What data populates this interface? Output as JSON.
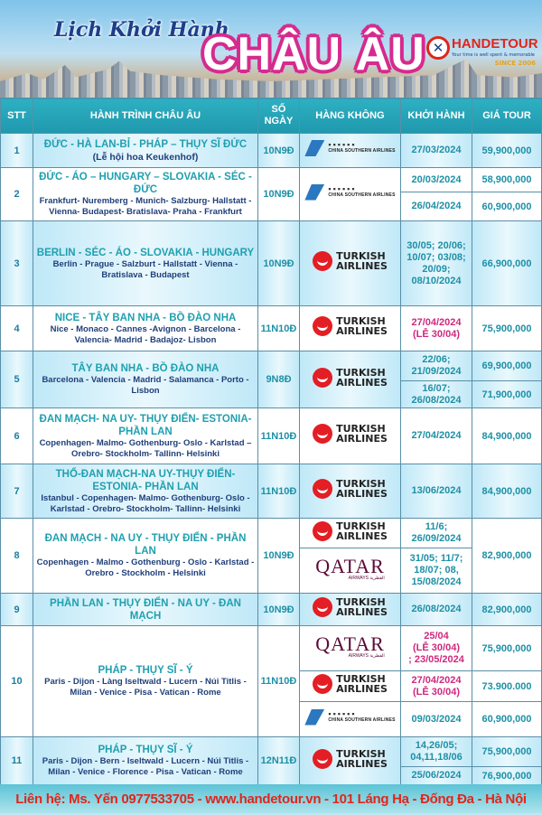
{
  "header": {
    "script_title": "Lịch Khởi Hành",
    "main_title": "CHÂU ÂU",
    "logo": {
      "name": "HANDETOUR",
      "tagline": "Your time is well spent & memorable",
      "since": "SINCE 2006"
    }
  },
  "airlines": {
    "china_southern": {
      "cn": "中国南方航空",
      "en": "CHINA SOUTHERN AIRLINES"
    },
    "turkish": {
      "l1": "TURKISH",
      "l2": "AIRLINES"
    },
    "qatar": {
      "l1": "QATAR",
      "l2": "AIRWAYS القطرية"
    }
  },
  "columns": {
    "stt": "STT",
    "route": "HÀNH TRÌNH CHÂU ÂU",
    "days_1": "SỐ",
    "days_2": "NGÀY",
    "airline": "HÀNG KHÔNG",
    "depart": "KHỞI HÀNH",
    "price": "GIÁ TOUR"
  },
  "rows": [
    {
      "stt": "1",
      "title": "ĐỨC - HÀ LAN-BỈ - PHÁP – THỤY SĨ ĐỨC",
      "cities": "(Lễ hội hoa Keukenhof)",
      "days": "10N9Đ",
      "airline": "china_southern",
      "departs": [
        {
          "date": "27/03/2024",
          "price": "59,900,000"
        }
      ]
    },
    {
      "stt": "2",
      "title": "ĐỨC -  ÁO – HUNGARY – SLOVAKIA - SÉC - ĐỨC",
      "cities": "Frankfurt- Nuremberg - Munich- Salzburg- Hallstatt - Vienna- Budapest- Bratislava- Praha - Frankfurt",
      "days": "10N9Đ",
      "airline": "china_southern",
      "departs": [
        {
          "date": "20/03/2024",
          "price": "58,900,000"
        },
        {
          "date": "26/04/2024",
          "price": "60,900,000"
        }
      ]
    },
    {
      "stt": "3",
      "title": "BERLIN - SÉC - ÁO - SLOVAKIA - HUNGARY",
      "cities": "Berlin - Prague - Salzburt - Hallstatt - Vienna - Bratislava - Budapest",
      "days": "10N9Đ",
      "airline": "turkish",
      "departs": [
        {
          "date": "30/05; 20/06; 10/07; 03/08; 20/09; 08/10/2024",
          "price": "66,900,000"
        }
      ]
    },
    {
      "stt": "4",
      "title": "NICE - TÂY BAN NHA - BỒ ĐÀO NHA",
      "cities": "Nice - Monaco - Cannes -Avignon - Barcelona - Valencia- Madrid - Badajoz- Lisbon",
      "days": "11N10Đ",
      "airline": "turkish",
      "departs": [
        {
          "date": "27/04/2024",
          "note": "(LỄ 30/04)",
          "highlight": true,
          "price": "75,900,000"
        }
      ]
    },
    {
      "stt": "5",
      "title": "TÂY BAN NHA - BỒ ĐÀO NHA",
      "cities": "Barcelona - Valencia - Madrid - Salamanca - Porto - Lisbon",
      "days": "9N8Đ",
      "airline": "turkish",
      "departs": [
        {
          "date": "22/06; 21/09/2024",
          "price": "69,900,000"
        },
        {
          "date": "16/07; 26/08/2024",
          "price": "71,900,000"
        }
      ]
    },
    {
      "stt": "6",
      "title": "ĐAN MẠCH- NA UY- THỤY ĐIỂN- ESTONIA- PHẦN LAN",
      "cities": "Copenhagen- Malmo- Gothenburg- Oslo - Karlstad –Orebro- Stockholm- Tallinn- Helsinki",
      "days": "11N10Đ",
      "airline": "turkish",
      "departs": [
        {
          "date": "27/04/2024",
          "price": "84,900,000"
        }
      ]
    },
    {
      "stt": "7",
      "title": "THỔ-ĐAN MẠCH-NA UY-THỤY ĐIỂN-ESTONIA- PHẦN LAN",
      "cities": "Istanbul - Copenhagen- Malmo- Gothenburg- Oslo - Karlstad - Orebro- Stockholm- Tallinn- Helsinki",
      "days": "11N10Đ",
      "airline": "turkish",
      "departs": [
        {
          "date": "13/06/2024",
          "price": "84,900,000"
        }
      ]
    },
    {
      "stt": "8",
      "title": "ĐAN MẠCH - NA UY - THỤY ĐIỂN - PHẦN LAN",
      "cities": "Copenhagen - Malmo - Gothenburg - Oslo - Karlstad - Orebro - Stockholm - Helsinki",
      "days": "10N9Đ",
      "price": "82,900,000",
      "departs": [
        {
          "airline": "turkish",
          "date": "11/6; 26/09/2024"
        },
        {
          "airline": "qatar",
          "date": "31/05; 11/7; 18/07; 08, 15/08/2024"
        }
      ]
    },
    {
      "stt": "9",
      "title": "PHẦN LAN - THỤY ĐIỂN - NA UY - ĐAN MẠCH",
      "days": "10N9Đ",
      "airline": "turkish",
      "departs": [
        {
          "date": "26/08/2024",
          "price": "82,900,000"
        }
      ]
    },
    {
      "stt": "10",
      "title": "PHÁP - THỤY SĨ - Ý",
      "cities": "Paris - Dijon - Làng Iseltwald - Lucern - Núi Titlis - Milan - Venice - Pisa - Vatican - Rome",
      "days": "11N10Đ",
      "departs": [
        {
          "airline": "qatar",
          "date": "25/04",
          "note": "(LỄ 30/04)",
          "extra": "; 23/05/2024",
          "highlight": true,
          "price": "75,900,000"
        },
        {
          "airline": "turkish",
          "date": "27/04/2024",
          "note": "(LỄ 30/04)",
          "highlight": true,
          "price": "73.900.000"
        },
        {
          "airline": "china_southern",
          "date": "09/03/2024",
          "price": "60,900,000"
        }
      ]
    },
    {
      "stt": "11",
      "title": "PHÁP - THỤY SĨ - Ý",
      "cities": "Paris - Dijon - Bern - Iseltwald - Lucern - Núi Titlis - Milan - Venice - Florence - Pisa - Vatican - Rome",
      "days": "12N11Đ",
      "airline": "turkish",
      "departs": [
        {
          "date": "14,26/05; 04,11,18/06",
          "price": "75,900,000"
        },
        {
          "date": "25/06/2024",
          "price": "76,900,000"
        }
      ]
    }
  ],
  "footer": {
    "contact": "Liên hệ: Ms. Yến 0977533705 - www.handetour.vn - 101 Láng Hạ - Đống Đa - Hà Nội"
  },
  "colors": {
    "header_teal": "#1f98ad",
    "title_pink": "#d62a8f",
    "highlight_pink": "#d0287e",
    "footer_red": "#e0261b"
  }
}
